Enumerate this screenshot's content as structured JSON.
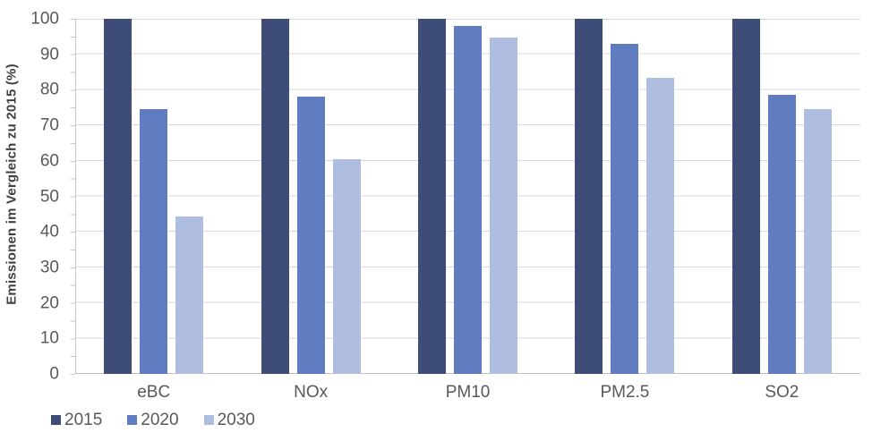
{
  "chart_data": {
    "type": "bar",
    "title": "",
    "xlabel": "",
    "ylabel": "Emissionen im Vergleich zu 2015 (%)",
    "categories": [
      "eBC",
      "NOx",
      "PM10",
      "PM2.5",
      "SO2"
    ],
    "series": [
      {
        "name": "2015",
        "color": "#3E4C78",
        "values": [
          100,
          100,
          100,
          100,
          100
        ]
      },
      {
        "name": "2020",
        "color": "#5E7CBF",
        "values": [
          74.5,
          78,
          98,
          93,
          78.5
        ]
      },
      {
        "name": "2030",
        "color": "#AFBEE0",
        "values": [
          44.3,
          60.5,
          94.7,
          83.5,
          74.5
        ]
      }
    ],
    "ylim": [
      0,
      100
    ],
    "yticks": [
      0,
      10,
      20,
      30,
      40,
      50,
      60,
      70,
      80,
      90,
      100
    ],
    "grid": true,
    "gridline_color": "#d9d9d9",
    "axis_line_color": "#bfbfbf",
    "label_color": "#595959",
    "axis_title_color": "#404040",
    "legend_position": "bottom-left"
  }
}
